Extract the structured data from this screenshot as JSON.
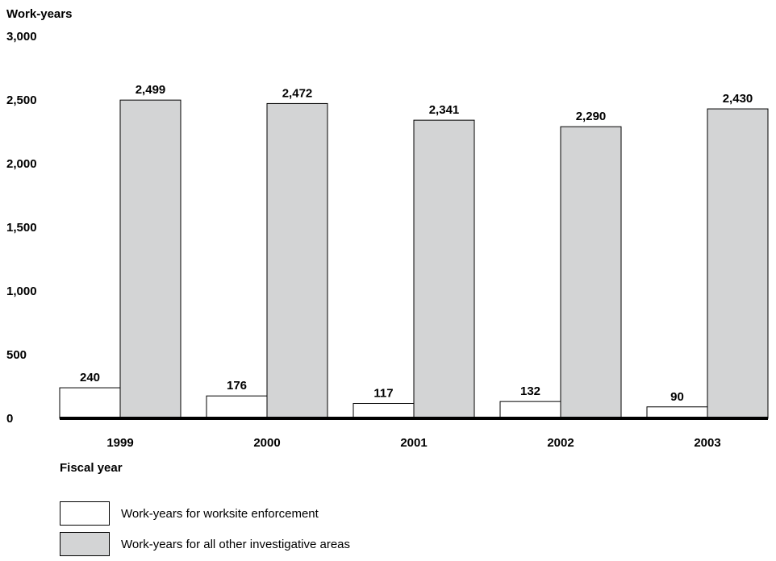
{
  "chart_data": {
    "type": "bar",
    "ylabel": "Work-years",
    "xlabel": "Fiscal year",
    "categories": [
      "1999",
      "2000",
      "2001",
      "2002",
      "2003"
    ],
    "ylim": [
      0,
      3000
    ],
    "yticks": [
      0,
      500,
      1000,
      1500,
      2000,
      2500,
      3000
    ],
    "ytick_labels": [
      "0",
      "500",
      "1,000",
      "1,500",
      "2,000",
      "2,500",
      "3,000"
    ],
    "grid": false,
    "legend_position": "bottom-left",
    "series": [
      {
        "name": "Work-years for worksite enforcement",
        "color": "#ffffff",
        "values": [
          240,
          176,
          117,
          132,
          90
        ],
        "labels": [
          "240",
          "176",
          "117",
          "132",
          "90"
        ]
      },
      {
        "name": "Work-years for all other investigative areas",
        "color": "#d3d4d5",
        "values": [
          2499,
          2472,
          2341,
          2290,
          2430
        ],
        "labels": [
          "2,499",
          "2,472",
          "2,341",
          "2,290",
          "2,430"
        ]
      }
    ]
  }
}
